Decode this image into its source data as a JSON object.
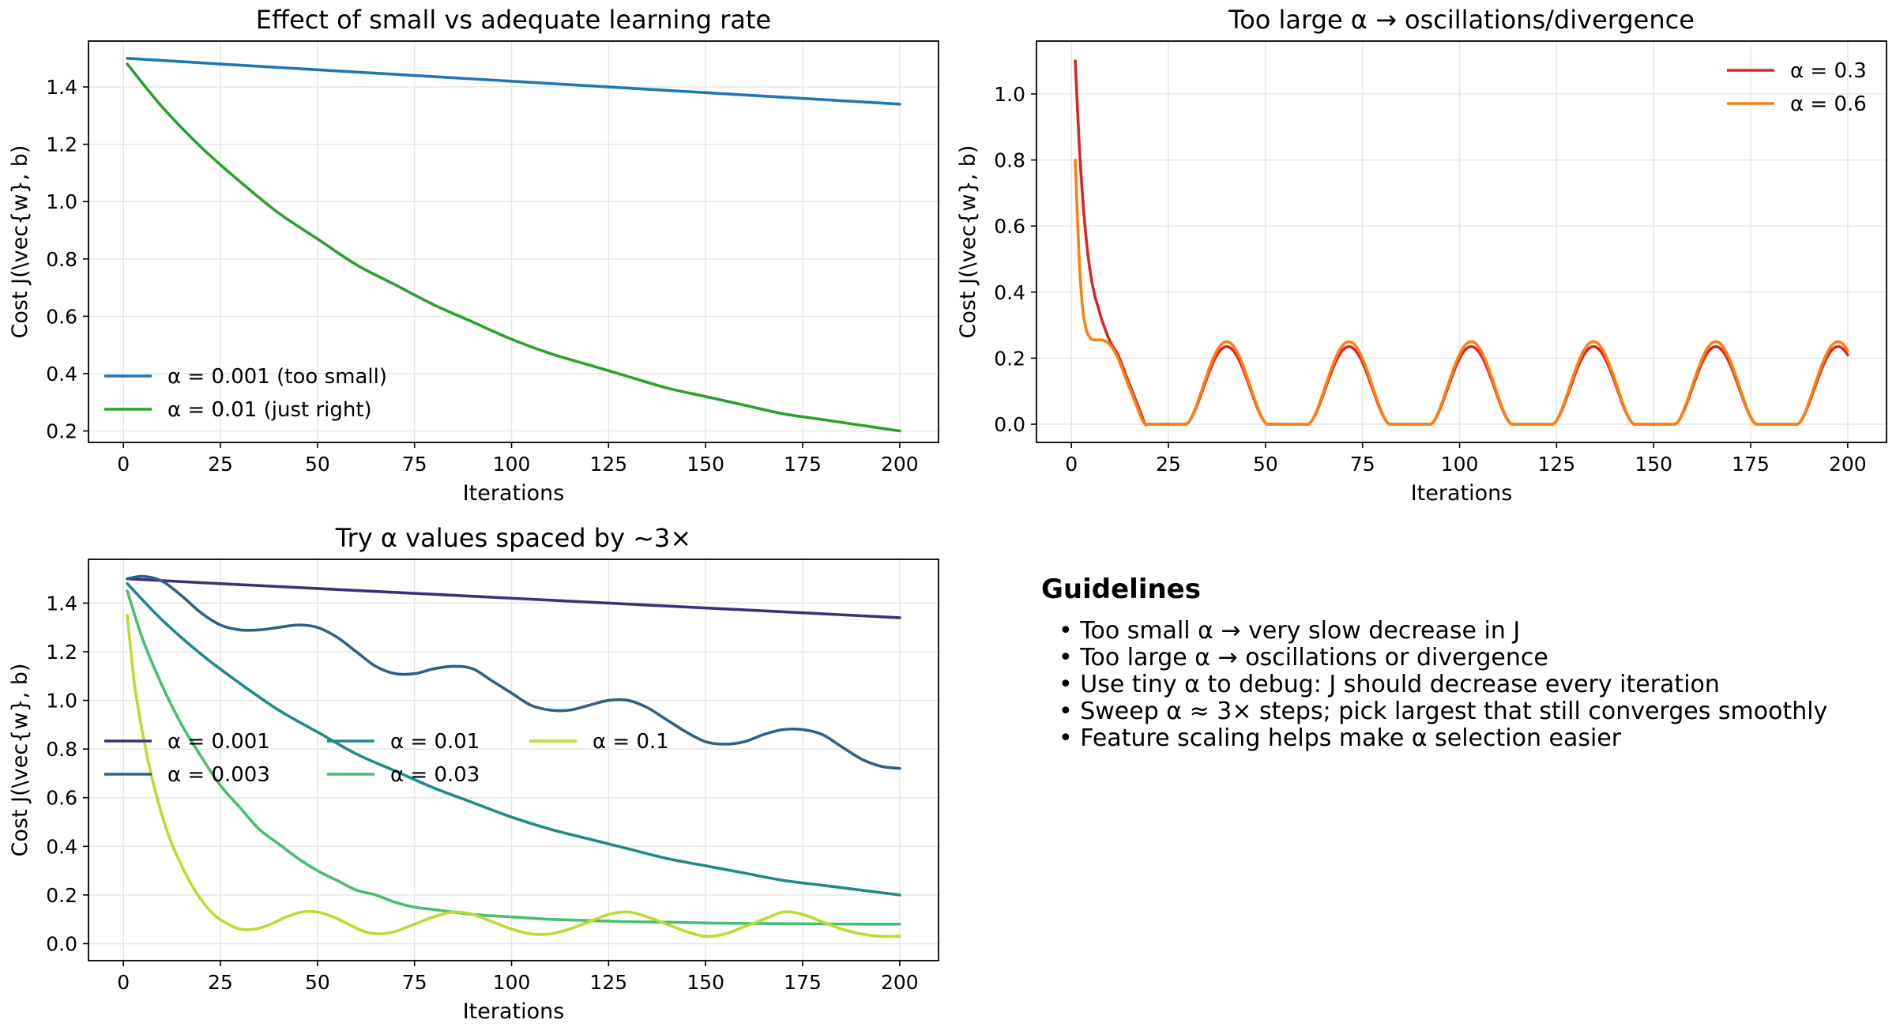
{
  "chart_data": [
    {
      "type": "line",
      "title": "Effect of small vs adequate learning rate",
      "xlabel": "Iterations",
      "ylabel": "Cost J(\\vec{w}, b)",
      "xlim": [
        -9,
        210
      ],
      "ylim": [
        0.16,
        1.56
      ],
      "xticks": [
        0,
        25,
        50,
        75,
        100,
        125,
        150,
        175,
        200
      ],
      "yticks": [
        0.2,
        0.4,
        0.6,
        0.8,
        1.0,
        1.2,
        1.4
      ],
      "grid": true,
      "legend": "lower-left",
      "series": [
        {
          "name": "α = 0.001 (too small)",
          "color": "#1f77b4",
          "x": [
            1,
            25,
            50,
            75,
            100,
            125,
            150,
            175,
            200
          ],
          "y": [
            1.5,
            1.48,
            1.46,
            1.44,
            1.42,
            1.4,
            1.38,
            1.36,
            1.34
          ]
        },
        {
          "name": "α = 0.01 (just right)",
          "color": "#2ca02c",
          "x": [
            1,
            10,
            20,
            30,
            40,
            50,
            60,
            70,
            80,
            90,
            100,
            110,
            120,
            130,
            140,
            150,
            160,
            170,
            180,
            190,
            200
          ],
          "y": [
            1.48,
            1.33,
            1.19,
            1.07,
            0.96,
            0.87,
            0.78,
            0.71,
            0.64,
            0.58,
            0.52,
            0.47,
            0.43,
            0.39,
            0.35,
            0.32,
            0.29,
            0.26,
            0.24,
            0.22,
            0.2
          ]
        }
      ]
    },
    {
      "type": "line",
      "title": "Too large α → oscillations/divergence",
      "xlabel": "Iterations",
      "ylabel": "Cost J(\\vec{w}, b)",
      "xlim": [
        -9,
        210
      ],
      "ylim": [
        -0.055,
        1.16
      ],
      "xticks": [
        0,
        25,
        50,
        75,
        100,
        125,
        150,
        175,
        200
      ],
      "yticks": [
        0.0,
        0.2,
        0.4,
        0.6,
        0.8,
        1.0
      ],
      "grid": true,
      "legend": "upper-right",
      "series": [
        {
          "name": "α = 0.3",
          "color": "#d62728",
          "waveAmp": 0.235,
          "x": [
            1,
            2,
            3,
            4,
            5,
            6,
            7,
            8,
            10,
            12,
            14,
            16,
            18,
            19
          ],
          "y": [
            1.1,
            0.85,
            0.67,
            0.54,
            0.45,
            0.39,
            0.35,
            0.31,
            0.25,
            0.21,
            0.15,
            0.09,
            0.03,
            0.0
          ]
        },
        {
          "name": "α = 0.6",
          "color": "#ff7f0e",
          "waveAmp": 0.25,
          "x": [
            1,
            2,
            3,
            4,
            5,
            6,
            8,
            10,
            12,
            14,
            16,
            18,
            19
          ],
          "y": [
            0.8,
            0.5,
            0.34,
            0.28,
            0.26,
            0.255,
            0.255,
            0.24,
            0.2,
            0.14,
            0.08,
            0.02,
            0.0
          ]
        }
      ]
    },
    {
      "type": "line",
      "title": "Try α values spaced by ~3×",
      "xlabel": "Iterations",
      "ylabel": "Cost J(\\vec{w}, b)",
      "xlim": [
        -9,
        210
      ],
      "ylim": [
        -0.07,
        1.58
      ],
      "xticks": [
        0,
        25,
        50,
        75,
        100,
        125,
        150,
        175,
        200
      ],
      "yticks": [
        0.0,
        0.2,
        0.4,
        0.6,
        0.8,
        1.0,
        1.2,
        1.4
      ],
      "grid": true,
      "legend": "center-left",
      "series": [
        {
          "name": "α = 0.001",
          "color": "#3e2f78",
          "x": [
            1,
            25,
            50,
            75,
            100,
            125,
            150,
            175,
            200
          ],
          "y": [
            1.5,
            1.48,
            1.46,
            1.44,
            1.42,
            1.4,
            1.38,
            1.36,
            1.34
          ]
        },
        {
          "name": "α = 0.003",
          "color": "#2f6185",
          "x": [
            1,
            5,
            10,
            15,
            20,
            25,
            30,
            35,
            40,
            45,
            50,
            55,
            60,
            65,
            70,
            75,
            80,
            85,
            90,
            95,
            100,
            105,
            110,
            115,
            120,
            125,
            130,
            135,
            140,
            145,
            150,
            155,
            160,
            165,
            170,
            175,
            180,
            185,
            190,
            195,
            200
          ],
          "y": [
            1.5,
            1.51,
            1.49,
            1.43,
            1.36,
            1.31,
            1.29,
            1.29,
            1.3,
            1.31,
            1.3,
            1.26,
            1.2,
            1.14,
            1.11,
            1.11,
            1.13,
            1.14,
            1.13,
            1.08,
            1.03,
            0.98,
            0.96,
            0.96,
            0.98,
            1.0,
            1.0,
            0.97,
            0.92,
            0.87,
            0.83,
            0.82,
            0.83,
            0.86,
            0.88,
            0.88,
            0.86,
            0.81,
            0.76,
            0.73,
            0.72
          ]
        },
        {
          "name": "α = 0.01",
          "color": "#1f8a89",
          "x": [
            1,
            10,
            20,
            30,
            40,
            50,
            60,
            70,
            80,
            90,
            100,
            110,
            120,
            130,
            140,
            150,
            160,
            170,
            180,
            190,
            200
          ],
          "y": [
            1.48,
            1.33,
            1.19,
            1.07,
            0.96,
            0.87,
            0.78,
            0.71,
            0.64,
            0.58,
            0.52,
            0.47,
            0.43,
            0.39,
            0.35,
            0.32,
            0.29,
            0.26,
            0.24,
            0.22,
            0.2
          ]
        },
        {
          "name": "α = 0.03",
          "color": "#47bf70",
          "x": [
            1,
            5,
            10,
            15,
            20,
            25,
            30,
            35,
            40,
            45,
            50,
            55,
            60,
            65,
            70,
            75,
            80,
            90,
            100,
            110,
            120,
            130,
            140,
            150,
            160,
            170,
            180,
            190,
            200
          ],
          "y": [
            1.45,
            1.25,
            1.06,
            0.9,
            0.77,
            0.65,
            0.56,
            0.47,
            0.41,
            0.35,
            0.3,
            0.26,
            0.22,
            0.2,
            0.17,
            0.15,
            0.14,
            0.12,
            0.11,
            0.1,
            0.095,
            0.09,
            0.088,
            0.085,
            0.083,
            0.082,
            0.081,
            0.08,
            0.08
          ]
        },
        {
          "name": "α = 0.1",
          "color": "#bcdb2c",
          "x": [
            1,
            3,
            6,
            9,
            12,
            15,
            18,
            21,
            24,
            27,
            30,
            34,
            38,
            42,
            46,
            50,
            54,
            58,
            62,
            66,
            70,
            75,
            80,
            85,
            90,
            95,
            100,
            105,
            110,
            115,
            120,
            125,
            130,
            135,
            140,
            145,
            150,
            155,
            160,
            165,
            170,
            175,
            180,
            185,
            190,
            195,
            200
          ],
          "y": [
            1.35,
            1.05,
            0.78,
            0.58,
            0.43,
            0.32,
            0.23,
            0.16,
            0.11,
            0.08,
            0.06,
            0.06,
            0.08,
            0.11,
            0.13,
            0.13,
            0.11,
            0.08,
            0.05,
            0.04,
            0.05,
            0.08,
            0.11,
            0.13,
            0.12,
            0.09,
            0.06,
            0.04,
            0.04,
            0.06,
            0.09,
            0.12,
            0.13,
            0.11,
            0.08,
            0.05,
            0.03,
            0.04,
            0.07,
            0.1,
            0.13,
            0.12,
            0.09,
            0.06,
            0.04,
            0.03,
            0.03
          ]
        }
      ]
    }
  ],
  "guidelines": {
    "title": "Guidelines",
    "items": [
      "• Too small α → very slow decrease in J",
      "• Too large α → oscillations or divergence",
      "• Use tiny α to debug: J should decrease every iteration",
      "• Sweep α ≈ 3× steps; pick largest that still converges smoothly",
      "• Feature scaling helps make α selection easier"
    ]
  }
}
